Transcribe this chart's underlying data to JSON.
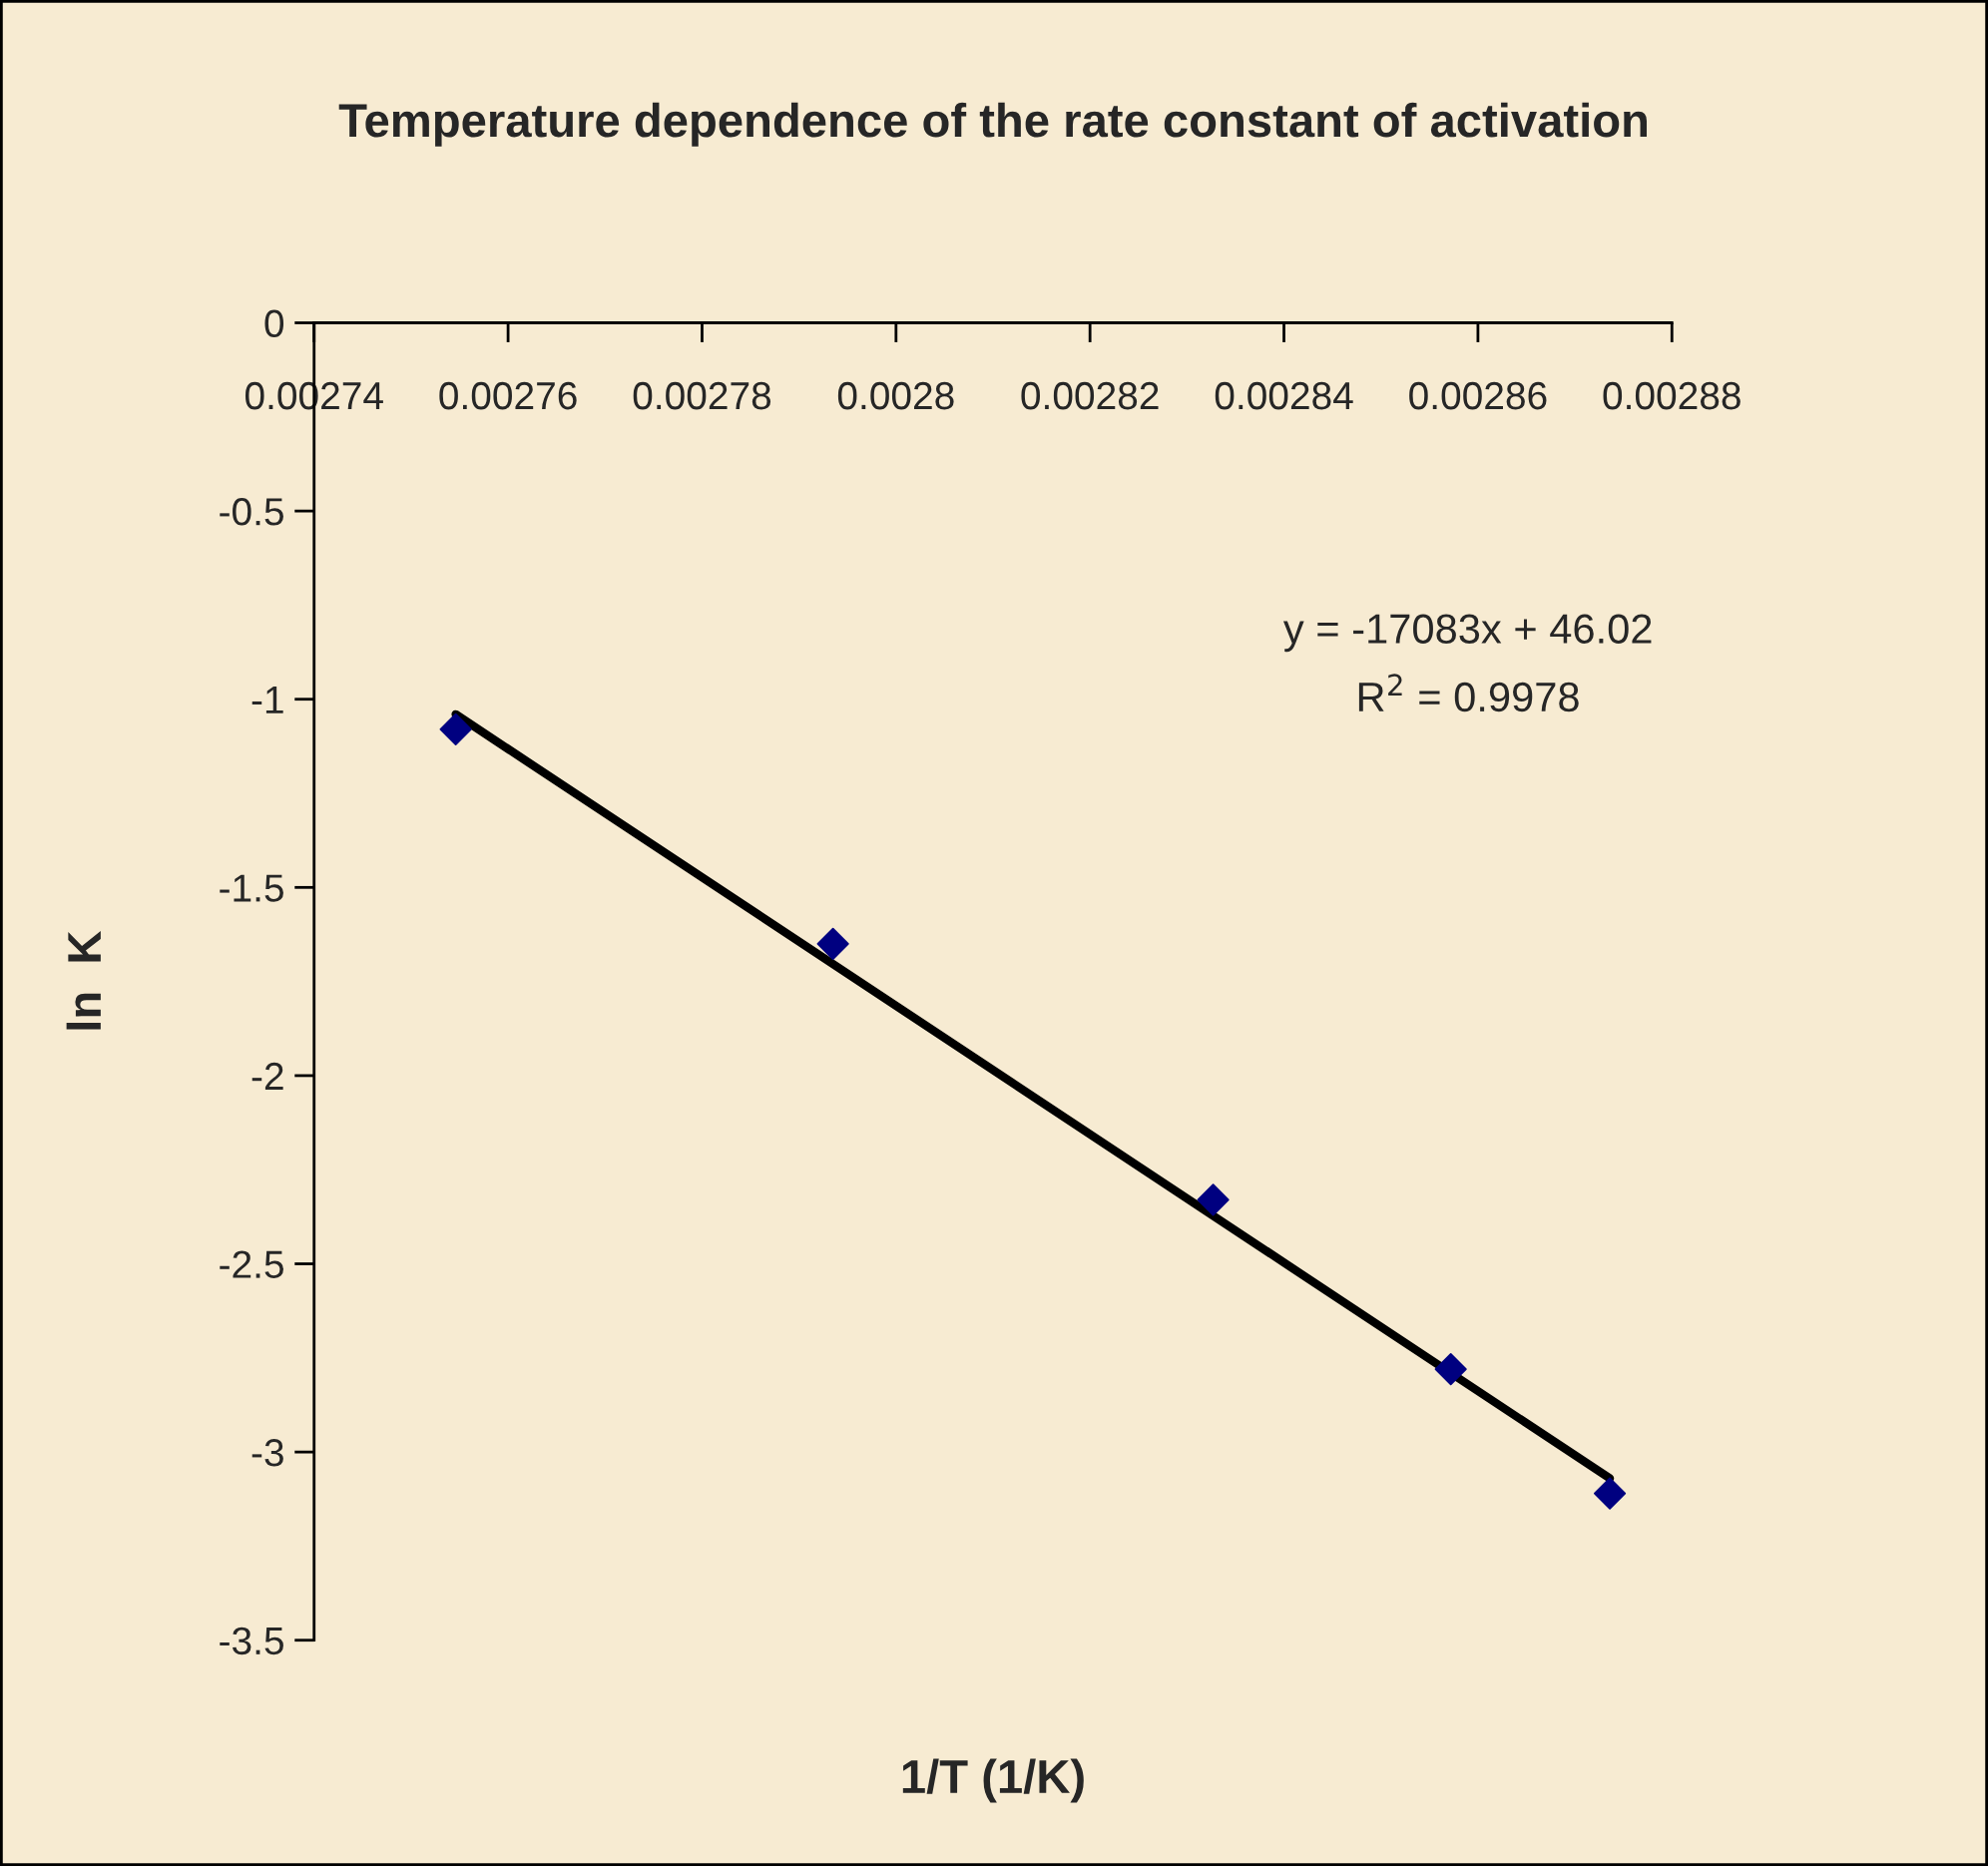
{
  "chart_data": {
    "type": "scatter",
    "title": "Temperature dependence of the rate constant of activation",
    "xlabel": "1/T (1/K)",
    "ylabel": "ln  K",
    "annotations": [
      "y = -17083x + 46.02",
      "R$^{2}$ = 0.9978"
    ],
    "series": [
      {
        "color": "#000080",
        "marker": "diamond",
        "x": [
          0.0027546,
          0.0027935,
          0.0028327,
          0.0028572,
          0.0028736
        ],
        "values": [
          -1.08,
          -1.65,
          -2.33,
          -2.78,
          -3.11
        ]
      },
      {
        "type": "line",
        "color": "#000000",
        "marker": "none",
        "line_style": "solid",
        "x": [
          0.0027546,
          0.0028736
        ],
        "values": [
          -1.04,
          -3.07
        ]
      }
    ],
    "xlim": [
      0.00274,
      0.00288
    ],
    "xticks": [
      0.00274,
      0.00276,
      0.00278,
      0.0028,
      0.00282,
      0.00284,
      0.00286,
      0.00288
    ],
    "ylim": [
      -3.5,
      0
    ],
    "yticks": [
      0,
      -0.5,
      -1,
      -1.5,
      -2,
      -2.5,
      -3,
      -3.5
    ],
    "grid": false,
    "legend": false
  }
}
